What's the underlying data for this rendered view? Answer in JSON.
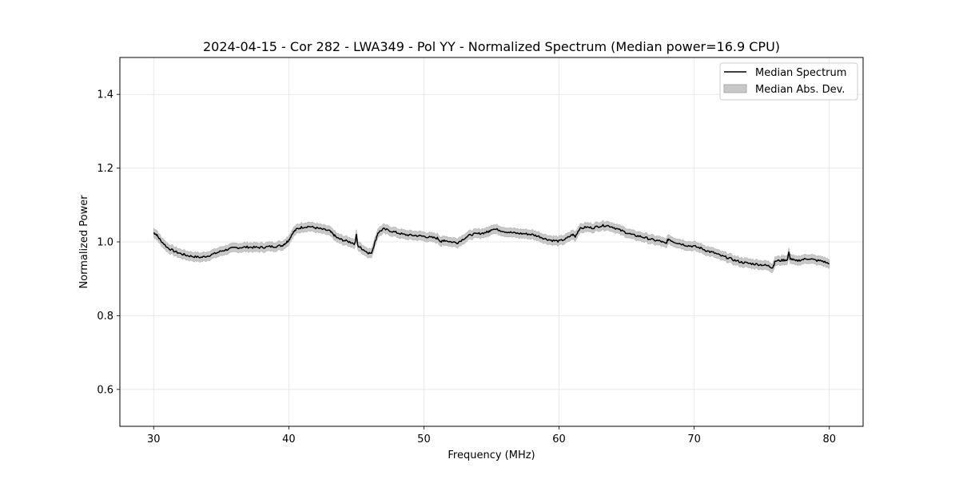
{
  "chart_data": {
    "type": "line",
    "title": "2024-04-15 - Cor 282 - LWA349 - Pol YY - Normalized Spectrum (Median power=16.9 CPU)",
    "xlabel": "Frequency (MHz)",
    "ylabel": "Normalized Power",
    "xlim": [
      27.5,
      82.5
    ],
    "ylim": [
      0.5,
      1.5
    ],
    "xticks": [
      30,
      40,
      50,
      60,
      70,
      80
    ],
    "xtick_labels": [
      "30",
      "40",
      "50",
      "60",
      "70",
      "80"
    ],
    "yticks": [
      0.6,
      0.8,
      1.0,
      1.2,
      1.4
    ],
    "ytick_labels": [
      "0.6",
      "0.8",
      "1.0",
      "1.2",
      "1.4"
    ],
    "grid": true,
    "legend_position": "top-right",
    "series": [
      {
        "name": "Median Spectrum",
        "color": "#000000",
        "style": "line",
        "x": [
          30.0,
          30.2,
          30.5,
          31.0,
          31.5,
          32.0,
          32.5,
          33.0,
          33.5,
          34.0,
          34.5,
          35.0,
          35.5,
          36.0,
          36.5,
          37.0,
          37.5,
          38.0,
          38.5,
          39.0,
          39.5,
          39.8,
          40.0,
          40.3,
          40.6,
          41.0,
          41.5,
          42.0,
          42.5,
          43.0,
          43.3,
          43.6,
          44.0,
          44.5,
          44.9,
          45.0,
          45.1,
          45.4,
          45.8,
          46.1,
          46.3,
          46.6,
          47.0,
          47.5,
          48.0,
          48.5,
          49.0,
          49.5,
          50.0,
          50.5,
          51.0,
          51.3,
          51.5,
          52.0,
          52.5,
          53.0,
          53.5,
          54.0,
          54.5,
          54.8,
          55.0,
          55.5,
          56.0,
          56.5,
          57.0,
          57.5,
          58.0,
          58.5,
          59.0,
          59.5,
          60.0,
          60.5,
          61.0,
          61.2,
          61.5,
          62.0,
          62.5,
          63.0,
          63.5,
          64.0,
          64.5,
          65.0,
          65.5,
          66.0,
          66.5,
          67.0,
          67.5,
          67.9,
          68.1,
          68.5,
          69.0,
          69.5,
          70.0,
          70.5,
          71.0,
          71.5,
          72.0,
          72.5,
          73.0,
          73.5,
          74.0,
          74.5,
          75.0,
          75.5,
          75.8,
          76.0,
          76.5,
          76.9,
          77.0,
          77.1,
          77.5,
          78.0,
          78.5,
          79.0,
          79.5,
          80.0
        ],
        "values": [
          1.025,
          1.02,
          1.005,
          0.985,
          0.975,
          0.968,
          0.963,
          0.96,
          0.958,
          0.962,
          0.968,
          0.975,
          0.98,
          0.984,
          0.985,
          0.986,
          0.985,
          0.985,
          0.987,
          0.988,
          0.99,
          0.998,
          1.005,
          1.025,
          1.035,
          1.04,
          1.042,
          1.038,
          1.034,
          1.03,
          1.02,
          1.01,
          1.005,
          1.0,
          0.995,
          1.022,
          0.99,
          0.982,
          0.972,
          0.968,
          0.99,
          1.025,
          1.035,
          1.03,
          1.025,
          1.02,
          1.018,
          1.017,
          1.015,
          1.012,
          1.01,
          1.0,
          1.005,
          1.0,
          0.998,
          1.01,
          1.02,
          1.022,
          1.025,
          1.028,
          1.035,
          1.033,
          1.028,
          1.025,
          1.023,
          1.022,
          1.02,
          1.015,
          1.008,
          1.004,
          1.002,
          1.008,
          1.02,
          1.015,
          1.035,
          1.04,
          1.038,
          1.043,
          1.045,
          1.04,
          1.032,
          1.025,
          1.018,
          1.015,
          1.01,
          1.005,
          1.002,
          0.995,
          1.008,
          1.0,
          0.995,
          0.99,
          0.988,
          0.983,
          0.975,
          0.97,
          0.962,
          0.957,
          0.95,
          0.945,
          0.942,
          0.94,
          0.938,
          0.935,
          0.93,
          0.948,
          0.95,
          0.952,
          0.972,
          0.955,
          0.948,
          0.952,
          0.955,
          0.95,
          0.948,
          0.94
        ]
      },
      {
        "name": "Median Abs. Dev.",
        "color": "#c8c8c8",
        "style": "band",
        "halfwidth": 0.012
      }
    ]
  }
}
